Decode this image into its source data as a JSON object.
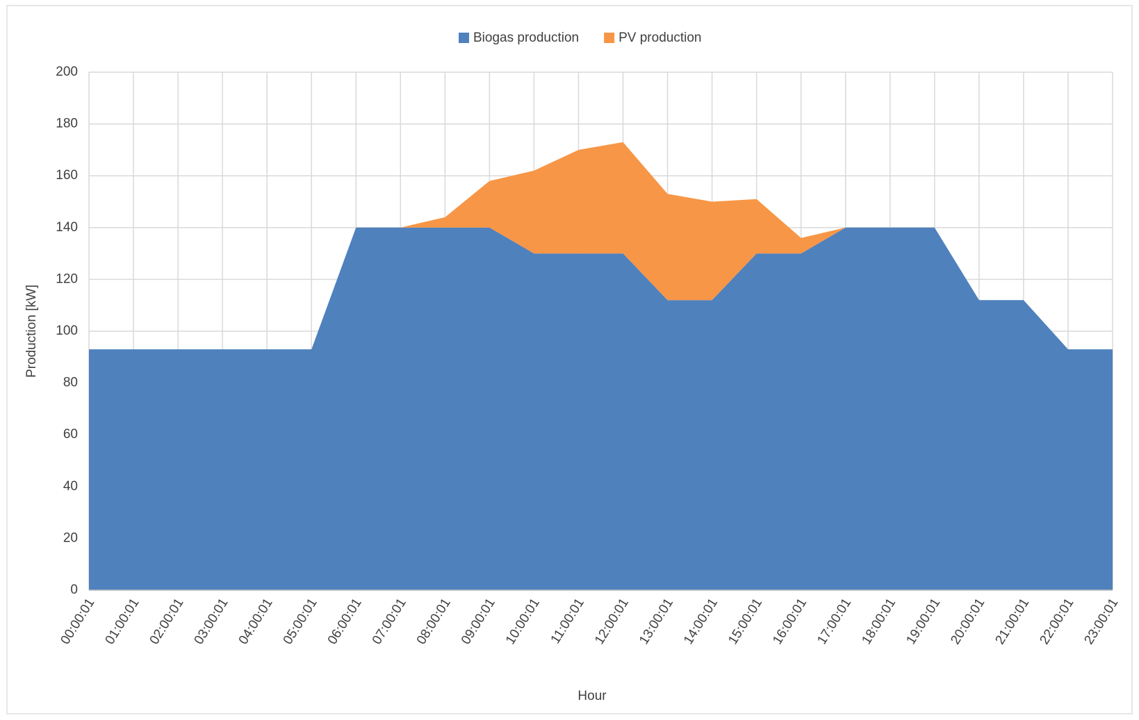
{
  "chart_data": {
    "type": "stacked_area",
    "xlabel": "Hour",
    "ylabel": "Production [kW]",
    "categories": [
      "00:00:01",
      "01:00:01",
      "02:00:01",
      "03:00:01",
      "04:00:01",
      "05:00:01",
      "06:00:01",
      "07:00:01",
      "08:00:01",
      "09:00:01",
      "10:00:01",
      "11:00:01",
      "12:00:01",
      "13:00:01",
      "14:00:01",
      "15:00:01",
      "16:00:01",
      "17:00:01",
      "18:00:01",
      "19:00:01",
      "20:00:01",
      "21:00:01",
      "22:00:01",
      "23:00:01"
    ],
    "series": [
      {
        "name": "Biogas production",
        "color": "#4f81bd",
        "values": [
          93,
          93,
          93,
          93,
          93,
          93,
          140,
          140,
          140,
          140,
          130,
          130,
          130,
          112,
          112,
          130,
          130,
          140,
          140,
          140,
          112,
          112,
          93,
          93
        ]
      },
      {
        "name": "PV production",
        "color": "#f79646",
        "values": [
          0,
          0,
          0,
          0,
          0,
          0,
          0,
          0,
          4,
          18,
          32,
          40,
          43,
          41,
          38,
          21,
          6,
          0,
          0,
          0,
          0,
          0,
          0,
          0
        ]
      }
    ],
    "ylim": [
      0,
      200
    ],
    "yticks": [
      0,
      20,
      40,
      60,
      80,
      100,
      120,
      140,
      160,
      180,
      200
    ],
    "grid": true,
    "legend": "top"
  }
}
